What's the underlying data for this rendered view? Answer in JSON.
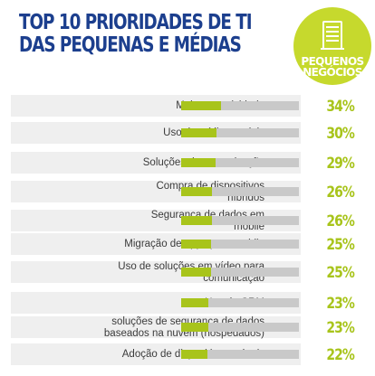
{
  "title": {
    "line1": "TOP 10 PRIORIDADES DE TI",
    "line2": "DAS PEQUENAS E MÉDIAS"
  },
  "badge": {
    "line1": "PEQUENOS",
    "line2": "NEGÓCIOS",
    "icon": "building-icon",
    "color": "#c6d92d"
  },
  "colors": {
    "title": "#1c3f8e",
    "bar_fill": "#a8c41b",
    "bar_track": "#c9c9c9",
    "row_bg": "#efefef"
  },
  "chart_data": {
    "type": "bar",
    "orientation": "horizontal",
    "title": "TOP 10 PRIORIDADES DE TI DAS PEQUENAS E MÉDIAS",
    "categories": [
      [
        "Mais conectividade"
      ],
      [
        "Uso de mídias sociais"
      ],
      [
        "Soluções de comunicação"
      ],
      [
        "Compra de dispositivos",
        "híbridos"
      ],
      [
        "Segurança de dados em",
        "mobile"
      ],
      [
        "Migração de apps para mobile"
      ],
      [
        "Uso de soluções em vídeo para",
        "comunicação"
      ],
      [
        "Uso de CRM"
      ],
      [
        "soluções de segurança de dados",
        "baseados na nuvem (hospedados)"
      ],
      [
        "Adoção de dispositivos móveis"
      ]
    ],
    "values": [
      34,
      30,
      29,
      26,
      26,
      25,
      25,
      23,
      23,
      22
    ],
    "value_labels": [
      "34%",
      "30%",
      "29%",
      "26%",
      "26%",
      "25%",
      "25%",
      "23%",
      "23%",
      "22%"
    ],
    "ylim": [
      0,
      100
    ]
  }
}
